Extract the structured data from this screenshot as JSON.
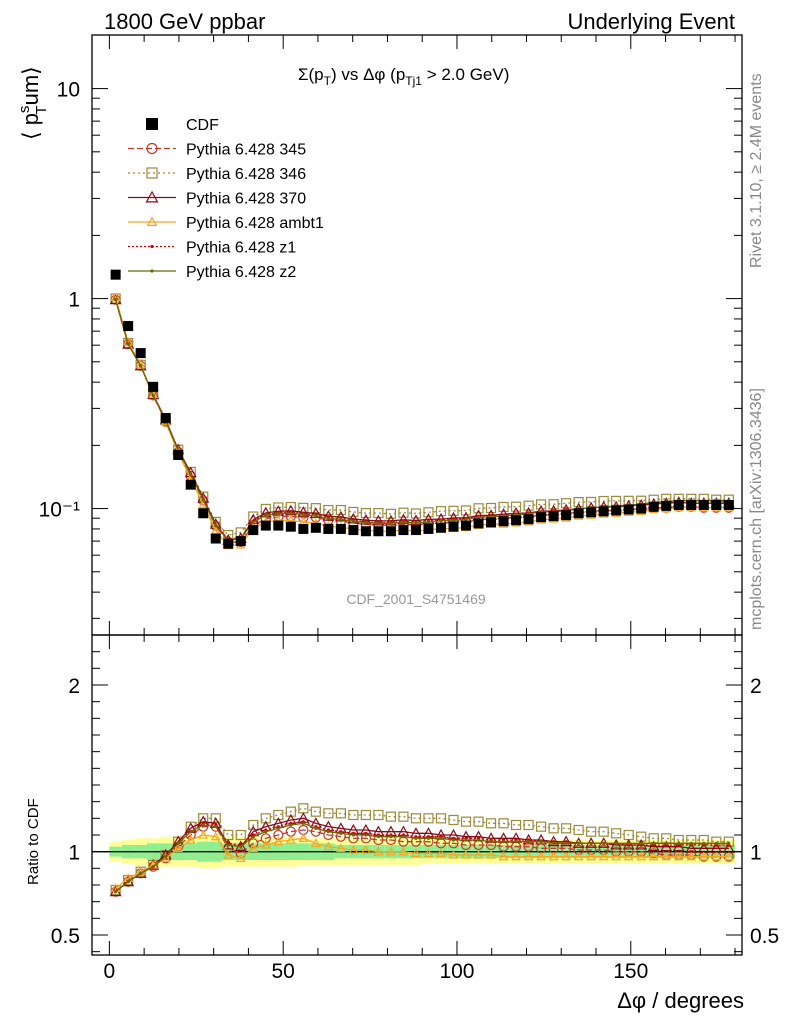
{
  "header": {
    "left": "1800 GeV ppbar",
    "right": "Underlying Event"
  },
  "side_labels": {
    "rivet": "Rivet 3.1.10, ≥ 2.4M events",
    "mcplots": "mcplots.cern.ch [arXiv:1306.3436]"
  },
  "watermark": "CDF_2001_S4751469",
  "colors": {
    "cdf": "#000000",
    "p345": "#c0392b",
    "p346": "#9b8a3a",
    "p370": "#8b0a1a",
    "ambt1": "#f5a623",
    "z1": "#cc0000",
    "z2": "#6b6b00",
    "band_inner": "#90ee90",
    "band_outer": "#ffff99"
  },
  "chart_data": {
    "type": "line",
    "title": "Σ(p_T) vs Δφ (p_Tj1 > 2.0 GeV)",
    "title_parts": {
      "main": "Σ(p",
      "sub1": "T",
      "mid": ") vs Δφ (p",
      "sub2": "Tj1",
      "end": " > 2.0 GeV)"
    },
    "ylabel_parts": {
      "open": "⟨ p",
      "sup": "s",
      "sub": "T",
      "close": "um⟩"
    },
    "xlabel": "Δφ / degrees",
    "ratio_ylabel": "Ratio to CDF",
    "xlim": [
      -5,
      182
    ],
    "ylim": [
      0.025,
      18
    ],
    "ylog": true,
    "ratio_ylim": [
      0.38,
      2.3
    ],
    "x_ticks": [
      0,
      50,
      100,
      150
    ],
    "y_ticks": [
      {
        "v": 10,
        "label": "10"
      },
      {
        "v": 1,
        "label": "1"
      },
      {
        "v": 0.1,
        "label": "10⁻¹"
      }
    ],
    "ratio_ticks": [
      {
        "v": 2,
        "label": "2"
      },
      {
        "v": 1,
        "label": "1"
      },
      {
        "v": 0.5,
        "label": "0.5"
      }
    ],
    "legend_placement": "top-left",
    "x": [
      1.8,
      5.4,
      9.0,
      12.6,
      16.2,
      19.8,
      23.4,
      27.0,
      30.6,
      34.2,
      37.8,
      41.4,
      45.0,
      48.6,
      52.2,
      55.8,
      59.4,
      63.0,
      66.6,
      70.2,
      73.8,
      77.4,
      81.0,
      84.6,
      88.2,
      91.8,
      95.4,
      99.0,
      102.6,
      106.2,
      109.8,
      113.4,
      117.0,
      120.6,
      124.2,
      127.8,
      131.4,
      135.0,
      138.6,
      142.2,
      145.8,
      149.4,
      153.0,
      156.6,
      160.2,
      163.8,
      167.4,
      171.0,
      174.6,
      178.2
    ],
    "cdf": [
      1.3,
      0.74,
      0.55,
      0.38,
      0.27,
      0.18,
      0.13,
      0.095,
      0.072,
      0.068,
      0.07,
      0.079,
      0.083,
      0.083,
      0.082,
      0.08,
      0.081,
      0.08,
      0.08,
      0.079,
      0.078,
      0.078,
      0.078,
      0.079,
      0.079,
      0.08,
      0.081,
      0.082,
      0.083,
      0.085,
      0.086,
      0.087,
      0.088,
      0.089,
      0.091,
      0.092,
      0.093,
      0.095,
      0.096,
      0.097,
      0.098,
      0.099,
      0.1,
      0.102,
      0.103,
      0.104,
      0.104,
      0.104,
      0.104,
      0.104
    ],
    "series": [
      {
        "name": "CDF",
        "ratio": [
          1.0
        ]
      },
      {
        "name": "Pythia 6.428 345",
        "ratio": [
          0.76,
          0.82,
          0.87,
          0.91,
          0.96,
          1.03,
          1.1,
          1.15,
          1.15,
          1.02,
          0.99,
          1.05,
          1.08,
          1.1,
          1.12,
          1.13,
          1.12,
          1.1,
          1.09,
          1.08,
          1.08,
          1.07,
          1.07,
          1.06,
          1.06,
          1.06,
          1.05,
          1.05,
          1.04,
          1.04,
          1.04,
          1.03,
          1.03,
          1.03,
          1.02,
          1.02,
          1.02,
          1.01,
          1.01,
          1.01,
          1.0,
          1.0,
          1.0,
          0.99,
          0.98,
          0.98,
          0.98,
          0.97,
          0.97,
          0.97
        ]
      },
      {
        "name": "Pythia 6.428 346",
        "ratio": [
          0.77,
          0.83,
          0.88,
          0.92,
          0.98,
          1.06,
          1.15,
          1.2,
          1.2,
          1.1,
          1.1,
          1.16,
          1.2,
          1.22,
          1.24,
          1.26,
          1.24,
          1.23,
          1.23,
          1.22,
          1.22,
          1.22,
          1.21,
          1.21,
          1.2,
          1.2,
          1.2,
          1.19,
          1.18,
          1.18,
          1.17,
          1.17,
          1.16,
          1.16,
          1.15,
          1.14,
          1.14,
          1.13,
          1.12,
          1.12,
          1.11,
          1.1,
          1.09,
          1.08,
          1.08,
          1.07,
          1.07,
          1.07,
          1.06,
          1.06
        ]
      },
      {
        "name": "Pythia 6.428 370",
        "ratio": [
          0.76,
          0.82,
          0.87,
          0.92,
          0.98,
          1.06,
          1.14,
          1.18,
          1.17,
          1.04,
          1.03,
          1.12,
          1.15,
          1.17,
          1.19,
          1.2,
          1.17,
          1.15,
          1.14,
          1.13,
          1.13,
          1.12,
          1.12,
          1.12,
          1.11,
          1.11,
          1.1,
          1.1,
          1.09,
          1.09,
          1.08,
          1.08,
          1.08,
          1.07,
          1.07,
          1.06,
          1.06,
          1.05,
          1.05,
          1.05,
          1.04,
          1.04,
          1.04,
          1.03,
          1.03,
          1.03,
          1.02,
          1.02,
          1.02,
          1.02
        ]
      },
      {
        "name": "Pythia 6.428 ambt1",
        "ratio": [
          0.78,
          0.84,
          0.88,
          0.92,
          0.96,
          1.02,
          1.07,
          1.1,
          1.09,
          0.98,
          0.96,
          1.02,
          1.04,
          1.06,
          1.07,
          1.08,
          1.05,
          1.03,
          1.02,
          1.01,
          1.01,
          1.0,
          1.0,
          1.0,
          0.99,
          0.99,
          0.99,
          0.98,
          0.98,
          0.98,
          0.98,
          0.97,
          0.97,
          0.97,
          0.97,
          0.97,
          0.97,
          0.97,
          0.97,
          0.97,
          0.97,
          0.97,
          0.97,
          0.97,
          0.97,
          0.97,
          0.97,
          0.97,
          0.97,
          0.97
        ]
      },
      {
        "name": "Pythia 6.428 z1",
        "ratio": [
          0.76,
          0.82,
          0.87,
          0.91,
          0.97,
          1.05,
          1.12,
          1.17,
          1.16,
          1.05,
          1.04,
          1.1,
          1.13,
          1.15,
          1.17,
          1.18,
          1.15,
          1.13,
          1.12,
          1.11,
          1.11,
          1.1,
          1.1,
          1.1,
          1.09,
          1.09,
          1.09,
          1.08,
          1.08,
          1.08,
          1.07,
          1.07,
          1.07,
          1.07,
          1.06,
          1.06,
          1.06,
          1.05,
          1.05,
          1.05,
          1.05,
          1.04,
          1.04,
          1.04,
          1.04,
          1.04,
          1.04,
          1.04,
          1.04,
          1.04
        ]
      },
      {
        "name": "Pythia 6.428 z2",
        "ratio": [
          0.76,
          0.82,
          0.87,
          0.91,
          0.97,
          1.05,
          1.12,
          1.16,
          1.15,
          1.04,
          1.03,
          1.09,
          1.12,
          1.14,
          1.16,
          1.17,
          1.14,
          1.12,
          1.11,
          1.1,
          1.1,
          1.09,
          1.09,
          1.09,
          1.08,
          1.08,
          1.08,
          1.07,
          1.07,
          1.07,
          1.06,
          1.06,
          1.06,
          1.06,
          1.06,
          1.05,
          1.05,
          1.05,
          1.05,
          1.05,
          1.05,
          1.05,
          1.05,
          1.05,
          1.05,
          1.05,
          1.05,
          1.05,
          1.05,
          1.05
        ]
      }
    ],
    "band_inner_halfwidth": [
      0.03,
      0.04,
      0.04,
      0.05,
      0.05,
      0.05,
      0.05,
      0.06,
      0.06,
      0.05,
      0.05,
      0.05,
      0.05,
      0.05,
      0.05,
      0.05,
      0.05,
      0.05,
      0.04,
      0.04,
      0.04,
      0.04,
      0.04,
      0.04,
      0.04,
      0.04,
      0.04,
      0.04,
      0.04,
      0.04,
      0.04,
      0.04,
      0.04,
      0.04,
      0.04,
      0.04,
      0.04,
      0.04,
      0.04,
      0.04,
      0.04,
      0.04,
      0.04,
      0.04,
      0.04,
      0.04,
      0.04,
      0.04,
      0.04,
      0.04
    ],
    "band_outer_halfwidth": [
      0.06,
      0.07,
      0.08,
      0.08,
      0.09,
      0.09,
      0.09,
      0.1,
      0.1,
      0.09,
      0.09,
      0.09,
      0.09,
      0.09,
      0.09,
      0.08,
      0.08,
      0.08,
      0.08,
      0.08,
      0.08,
      0.08,
      0.08,
      0.08,
      0.08,
      0.07,
      0.07,
      0.07,
      0.07,
      0.07,
      0.07,
      0.07,
      0.07,
      0.07,
      0.07,
      0.07,
      0.07,
      0.07,
      0.07,
      0.07,
      0.07,
      0.07,
      0.07,
      0.07,
      0.07,
      0.07,
      0.07,
      0.07,
      0.07,
      0.07
    ]
  }
}
